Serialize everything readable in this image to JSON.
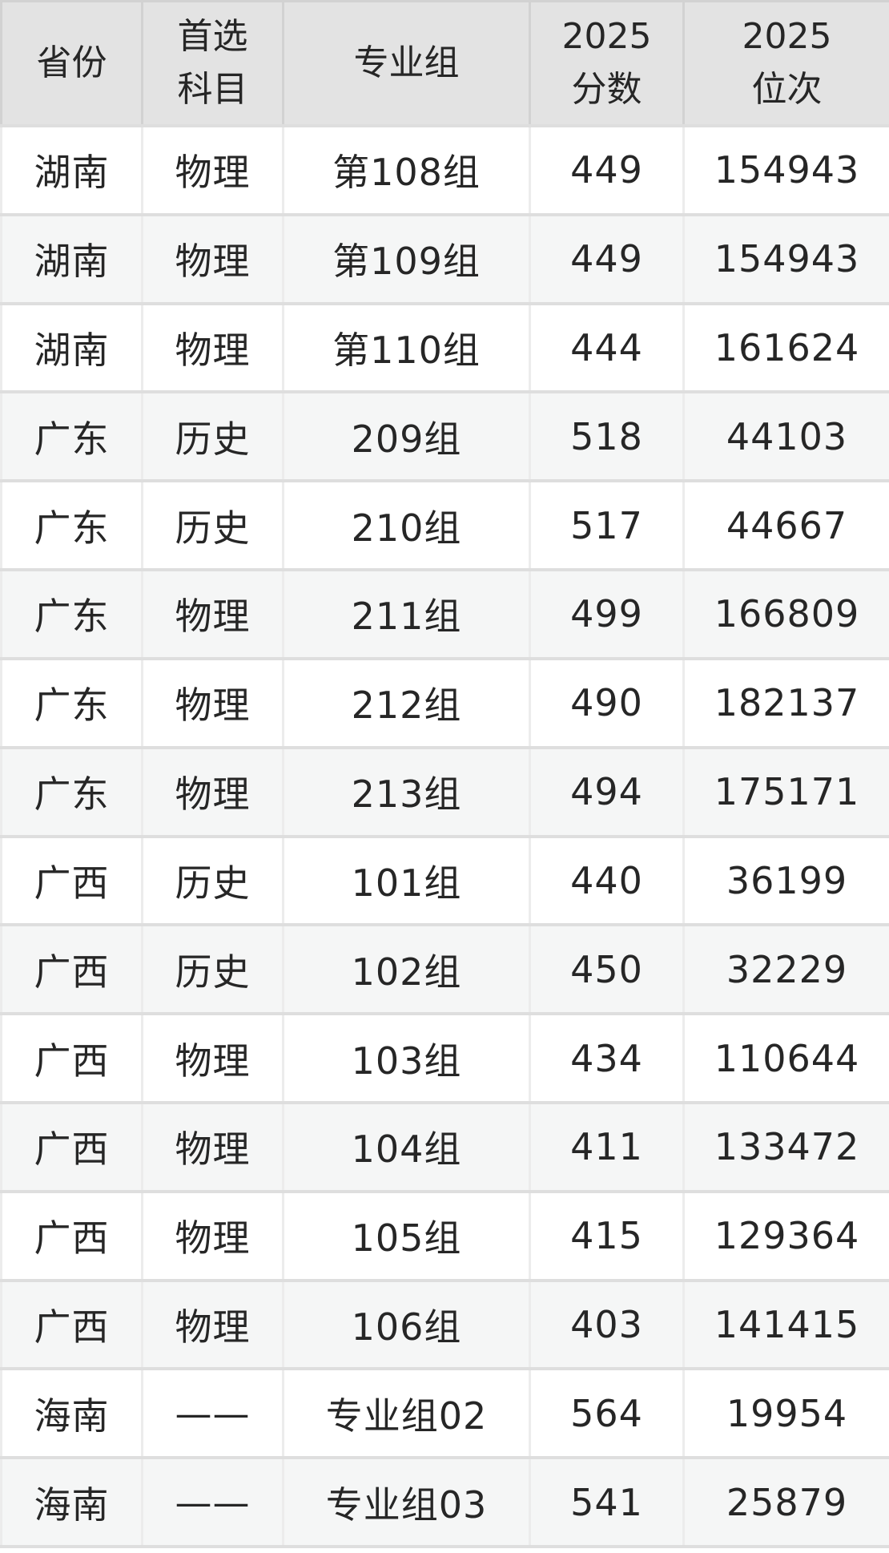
{
  "table": {
    "columns": [
      {
        "key": "province",
        "label": "省份"
      },
      {
        "key": "subject",
        "label": "首选\n科目"
      },
      {
        "key": "group",
        "label": "专业组"
      },
      {
        "key": "score",
        "label": "2025\n分数"
      },
      {
        "key": "rank",
        "label": "2025\n位次"
      }
    ],
    "rows": [
      [
        "湖南",
        "物理",
        "第108组",
        "449",
        "154943"
      ],
      [
        "湖南",
        "物理",
        "第109组",
        "449",
        "154943"
      ],
      [
        "湖南",
        "物理",
        "第110组",
        "444",
        "161624"
      ],
      [
        "广东",
        "历史",
        "209组",
        "518",
        "44103"
      ],
      [
        "广东",
        "历史",
        "210组",
        "517",
        "44667"
      ],
      [
        "广东",
        "物理",
        "211组",
        "499",
        "166809"
      ],
      [
        "广东",
        "物理",
        "212组",
        "490",
        "182137"
      ],
      [
        "广东",
        "物理",
        "213组",
        "494",
        "175171"
      ],
      [
        "广西",
        "历史",
        "101组",
        "440",
        "36199"
      ],
      [
        "广西",
        "历史",
        "102组",
        "450",
        "32229"
      ],
      [
        "广西",
        "物理",
        "103组",
        "434",
        "110644"
      ],
      [
        "广西",
        "物理",
        "104组",
        "411",
        "133472"
      ],
      [
        "广西",
        "物理",
        "105组",
        "415",
        "129364"
      ],
      [
        "广西",
        "物理",
        "106组",
        "403",
        "141415"
      ],
      [
        "海南",
        "——",
        "专业组02",
        "564",
        "19954"
      ],
      [
        "海南",
        "——",
        "专业组03",
        "541",
        "25879"
      ]
    ]
  },
  "colors": {
    "header_bg": "#e3e3e3",
    "row_bg": "#ffffff",
    "row_alt_bg": "#f5f6f6",
    "header_border": "#d2d2d2",
    "row_border": "#dedede",
    "text": "#262626"
  }
}
